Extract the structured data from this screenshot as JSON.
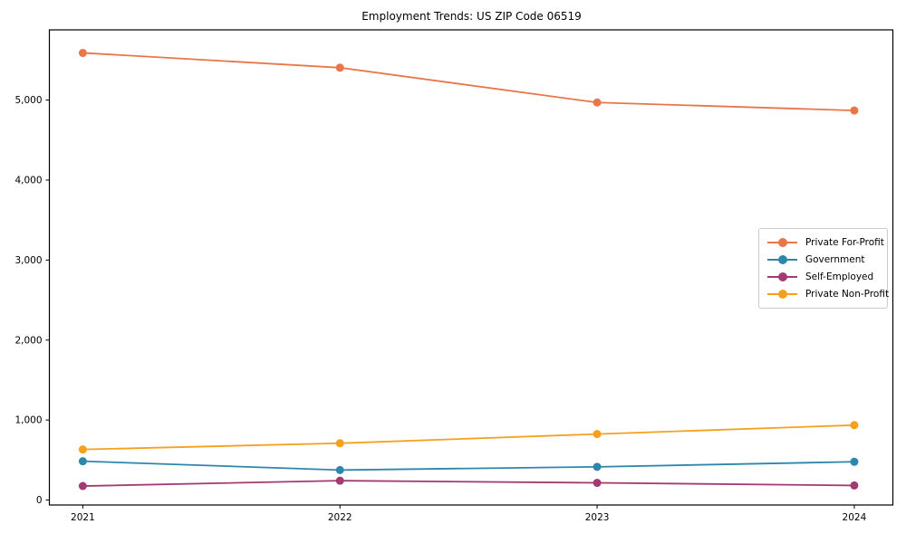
{
  "chart_data": {
    "type": "line",
    "title": "Employment Trends: US ZIP Code 06519",
    "xlabel": "",
    "ylabel": "",
    "x": [
      2021,
      2022,
      2023,
      2024
    ],
    "xtick_labels": [
      "2021",
      "2022",
      "2023",
      "2024"
    ],
    "series": [
      {
        "name": "Private For-Profit",
        "color": "#E8764A",
        "values": [
          5590,
          5405,
          4970,
          4870
        ]
      },
      {
        "name": "Government",
        "color": "#2E86AB",
        "values": [
          485,
          375,
          415,
          478
        ]
      },
      {
        "name": "Self-Employed",
        "color": "#A23B72",
        "values": [
          175,
          242,
          215,
          182
        ]
      },
      {
        "name": "Private Non-Profit",
        "color": "#F5A01E",
        "values": [
          632,
          710,
          825,
          936
        ]
      }
    ],
    "yticks": [
      0,
      1000,
      2000,
      3000,
      4000,
      5000
    ],
    "ytick_labels": [
      "0",
      "1,000",
      "2,000",
      "3,000",
      "4,000",
      "5,000"
    ],
    "ylim": [
      -62,
      5878
    ],
    "xlim": [
      2020.87,
      2024.15
    ],
    "grid": false,
    "legend": {
      "position": "center-right"
    },
    "axis_color": "#000000",
    "tick_label_color": "#000000"
  }
}
